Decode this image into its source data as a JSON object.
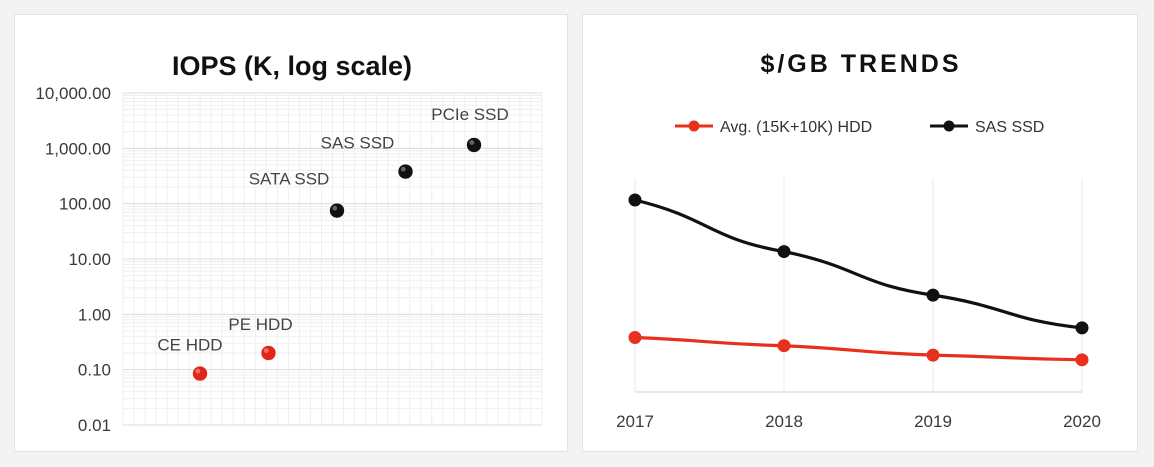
{
  "chart_data": [
    {
      "type": "scatter",
      "title": "IOPS (K, log scale)",
      "y_scale": "log",
      "ylim": [
        0.01,
        10000
      ],
      "y_ticks": [
        "10,000.00",
        "1,000.00",
        "100.00",
        "10.00",
        "1.00",
        "0.10",
        "0.01"
      ],
      "grid": true,
      "points": [
        {
          "label": "CE HDD",
          "x": 1,
          "y": 0.085,
          "color": "#e0261b"
        },
        {
          "label": "PE HDD",
          "x": 2,
          "y": 0.2,
          "color": "#e0261b"
        },
        {
          "label": "SATA SSD",
          "x": 3,
          "y": 75,
          "color": "#111111"
        },
        {
          "label": "SAS SSD",
          "x": 4,
          "y": 380,
          "color": "#111111"
        },
        {
          "label": "PCIe SSD",
          "x": 5,
          "y": 1150,
          "color": "#111111"
        }
      ]
    },
    {
      "type": "line",
      "title": "$/GB TRENDS",
      "categories": [
        "2017",
        "2018",
        "2019",
        "2020"
      ],
      "legend_position": "top",
      "grid": true,
      "series": [
        {
          "name": "Avg. (15K+10K) HDD",
          "color": "#e8301f",
          "values": [
            0.35,
            0.25,
            0.17,
            0.14
          ]
        },
        {
          "name": "SAS SSD",
          "color": "#111111",
          "values": [
            100,
            12,
            2,
            0.52
          ]
        }
      ]
    }
  ]
}
